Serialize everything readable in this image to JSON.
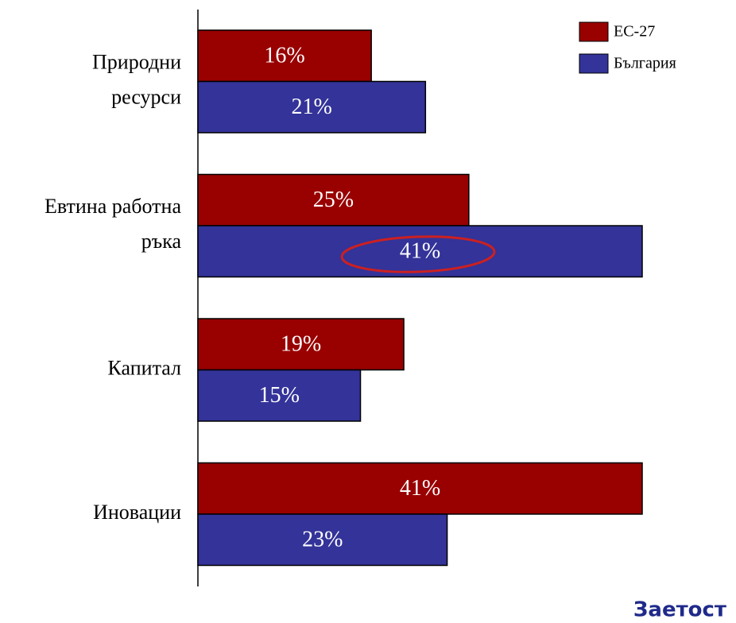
{
  "chart_data": {
    "type": "bar",
    "orientation": "horizontal",
    "categories": [
      "Природни\nресурси",
      "Евтина работна\nръка",
      "Капитал",
      "Иновации"
    ],
    "series": [
      {
        "name": "ЕС-27",
        "color": "#990000",
        "values": [
          16,
          25,
          19,
          41
        ],
        "value_labels": [
          "16%",
          "25%",
          "19%",
          "41%"
        ]
      },
      {
        "name": "България",
        "color": "#333399",
        "values": [
          21,
          41,
          15,
          23
        ],
        "value_labels": [
          "21%",
          "41%",
          "15%",
          "23%"
        ]
      }
    ],
    "xlim": [
      0,
      41
    ],
    "legend": "upper right",
    "annotation": "Заетост"
  }
}
